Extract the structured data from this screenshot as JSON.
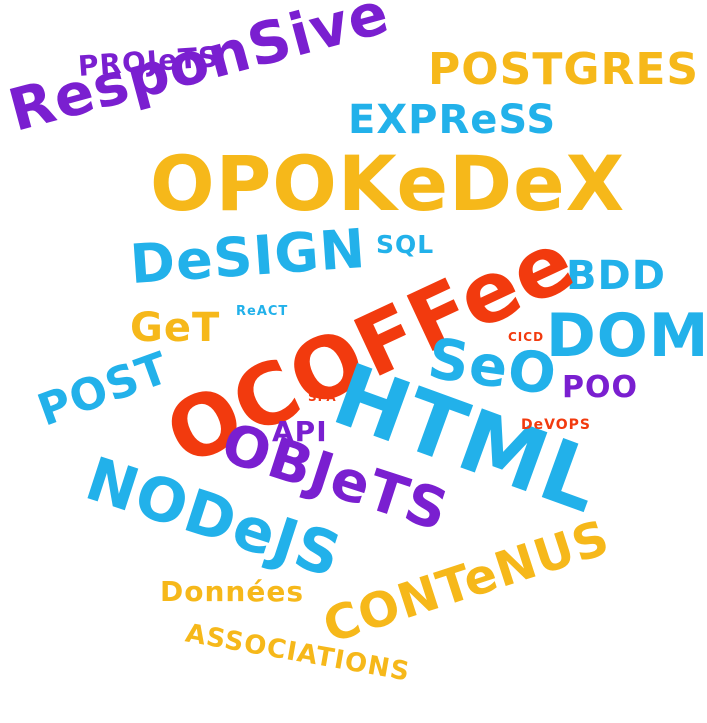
{
  "words": {
    "projets": "PROJeTS",
    "responsive": "ResponSive",
    "postgres": "POSTGRES",
    "express": "EXPReSS",
    "opokedex": "OPOKeDeX",
    "design": "DeSIGN",
    "sql": "SQL",
    "bdd": "BDD",
    "react": "ReACT",
    "get": "GeT",
    "ocoffee": "OCOFFee",
    "dom": "DOM",
    "cicd": "CICD",
    "seo": "SeO",
    "poo": "POO",
    "post": "POST",
    "spa": "SPA",
    "api": "API",
    "html": "HTML",
    "devops": "DeVOPS",
    "objets": "OBJeTS",
    "nodejs": "NODeJS",
    "contenus": "CONTeNUS",
    "donnees": "Données",
    "associations": "ASSOCIATIONS"
  },
  "colors": {
    "purple": "#7a1fd0",
    "yellow": "#f6b81a",
    "blue": "#22b1ea",
    "red": "#f23a0e"
  }
}
